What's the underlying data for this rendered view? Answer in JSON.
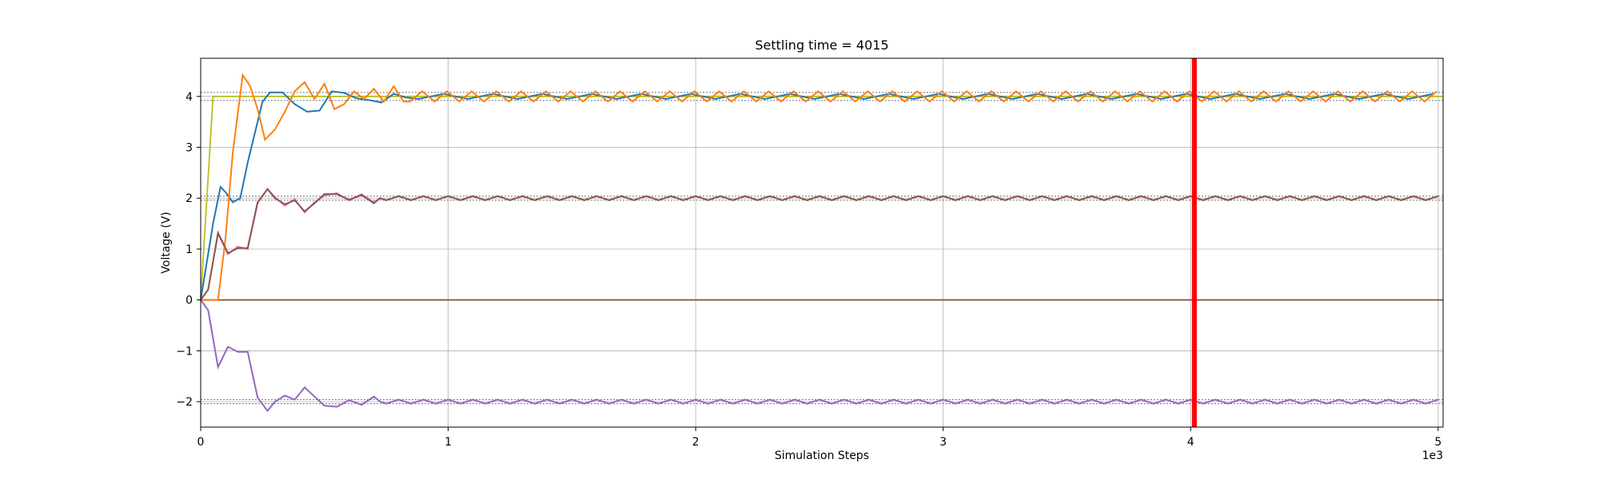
{
  "chart_data": {
    "type": "line",
    "title": "Settling time = 4015",
    "xlabel": "Simulation Steps",
    "ylabel": "Voltage (V)",
    "x_offset_label": "1e3",
    "xlim": [
      0,
      5.02
    ],
    "ylim": [
      -2.5,
      4.75
    ],
    "xticks": [
      0,
      1,
      2,
      3,
      4,
      5
    ],
    "xtick_labels": [
      "0",
      "1",
      "2",
      "3",
      "4",
      "5"
    ],
    "yticks": [
      -2,
      -1,
      0,
      1,
      2,
      3,
      4
    ],
    "ytick_labels": [
      "−2",
      "−1",
      "0",
      "1",
      "2",
      "3",
      "4"
    ],
    "grid": true,
    "legend": "none",
    "settling_time_marker": {
      "x": 4.015,
      "color": "#ff0000"
    },
    "tolerance_bands": [
      {
        "low": 3.92,
        "high": 4.08
      },
      {
        "low": 1.96,
        "high": 2.04
      },
      {
        "low": -2.04,
        "high": -1.96
      }
    ],
    "reference_lines": [
      {
        "color": "#bcbd22",
        "level": 4.0,
        "rise_start": 0.0,
        "rise_end": 0.05
      },
      {
        "color": "#8c564b",
        "level": 0.0,
        "rise_start": 0.0,
        "rise_end": 0.0
      }
    ],
    "series": [
      {
        "color": "#1f77b4",
        "target": 4.0,
        "amplitude": 0.05,
        "period": 0.2,
        "x": [
          0,
          0.02,
          0.05,
          0.08,
          0.1,
          0.13,
          0.16,
          0.19,
          0.22,
          0.25,
          0.28,
          0.33,
          0.38,
          0.43,
          0.48,
          0.53,
          0.58,
          0.63,
          0.68,
          0.73,
          0.78,
          0.83
        ],
        "y": [
          0,
          0.6,
          1.5,
          2.22,
          2.12,
          1.92,
          2.0,
          2.7,
          3.3,
          3.9,
          4.08,
          4.08,
          3.85,
          3.7,
          3.72,
          4.1,
          4.07,
          3.96,
          3.93,
          3.88,
          4.05,
          3.98
        ]
      },
      {
        "color": "#ff7f0e",
        "target": 4.0,
        "amplitude": 0.1,
        "period": 0.1,
        "x": [
          0,
          0.07,
          0.1,
          0.13,
          0.17,
          0.2,
          0.23,
          0.26,
          0.3,
          0.34,
          0.38,
          0.42,
          0.46,
          0.5,
          0.54,
          0.58,
          0.62,
          0.66,
          0.7,
          0.74,
          0.78,
          0.82
        ],
        "y": [
          0,
          0,
          1.2,
          2.9,
          4.42,
          4.2,
          3.75,
          3.15,
          3.35,
          3.7,
          4.1,
          4.28,
          3.95,
          4.25,
          3.75,
          3.85,
          4.1,
          3.95,
          4.15,
          3.9,
          4.2,
          3.9
        ]
      },
      {
        "color": "#e377c2",
        "target": 2.0,
        "amplitude": 0.04,
        "period": 0.1,
        "x": [
          0,
          0.03,
          0.07,
          0.11,
          0.15,
          0.19,
          0.23,
          0.27,
          0.3,
          0.34,
          0.38,
          0.42,
          0.46,
          0.5,
          0.55,
          0.6,
          0.65,
          0.7
        ],
        "y": [
          0,
          0.2,
          1.3,
          0.9,
          1.05,
          1.0,
          1.9,
          2.18,
          2.02,
          1.85,
          1.98,
          1.72,
          1.92,
          2.05,
          2.1,
          1.95,
          2.08,
          1.92
        ]
      },
      {
        "color": "#8c564b",
        "target": 2.0,
        "amplitude": 0.04,
        "period": 0.1,
        "x": [
          0,
          0.03,
          0.07,
          0.11,
          0.15,
          0.19,
          0.23,
          0.27,
          0.3,
          0.34,
          0.38,
          0.42,
          0.46,
          0.5,
          0.55,
          0.6,
          0.65,
          0.7
        ],
        "y": [
          0,
          0.2,
          1.32,
          0.92,
          1.02,
          1.02,
          1.92,
          2.18,
          2.0,
          1.88,
          1.96,
          1.74,
          1.9,
          2.08,
          2.08,
          1.97,
          2.06,
          1.9
        ]
      },
      {
        "color": "#9467bd",
        "target": -2.0,
        "amplitude": 0.04,
        "period": 0.1,
        "x": [
          0,
          0.03,
          0.07,
          0.11,
          0.15,
          0.19,
          0.23,
          0.27,
          0.3,
          0.34,
          0.38,
          0.42,
          0.46,
          0.5,
          0.55,
          0.6,
          0.65,
          0.7
        ],
        "y": [
          0,
          -0.2,
          -1.32,
          -0.92,
          -1.02,
          -1.02,
          -1.92,
          -2.18,
          -2.0,
          -1.88,
          -1.96,
          -1.72,
          -1.9,
          -2.08,
          -2.1,
          -1.97,
          -2.06,
          -1.9
        ]
      }
    ]
  }
}
